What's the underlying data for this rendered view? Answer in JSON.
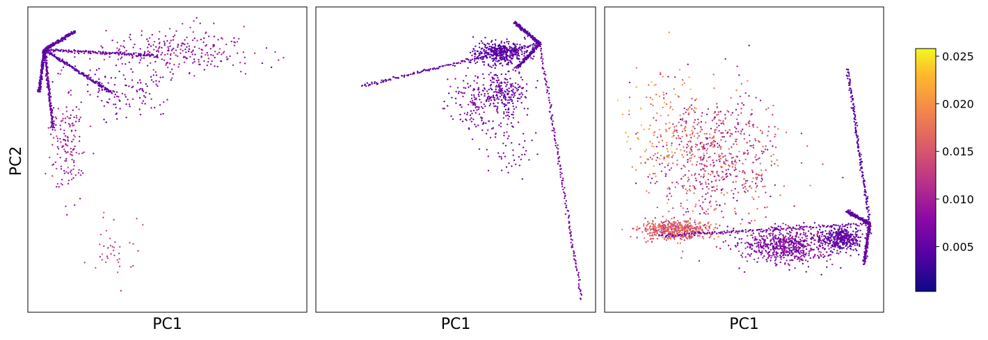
{
  "figure": {
    "ylabel": "PC2",
    "colormap": "plasma",
    "colorbar": {
      "min": 0.0003,
      "max": 0.0258,
      "ticks": [
        "0.005",
        "0.010",
        "0.015",
        "0.020",
        "0.025"
      ],
      "tick_values": [
        0.005,
        0.01,
        0.015,
        0.02,
        0.025
      ]
    }
  },
  "chart_data": [
    {
      "type": "scatter",
      "xlabel": "PC1",
      "ylabel": "PC2",
      "grid": false,
      "xlim": [
        0,
        100
      ],
      "ylim": [
        0,
        100
      ],
      "hub": [
        6,
        86
      ],
      "arms": [
        {
          "x": 17,
          "y": 92,
          "value": 0.004
        },
        {
          "x": 47,
          "y": 84,
          "value": 0.005
        },
        {
          "x": 30,
          "y": 72,
          "value": 0.004
        },
        {
          "x": 9,
          "y": 60,
          "value": 0.005
        },
        {
          "x": 4,
          "y": 72,
          "value": 0.004
        }
      ],
      "clusters": [
        {
          "cx": 55,
          "cy": 86,
          "sx": 22,
          "sy": 6,
          "n": 260,
          "vmin": 0.006,
          "vmax": 0.012
        },
        {
          "cx": 35,
          "cy": 72,
          "sx": 14,
          "sy": 7,
          "n": 120,
          "vmin": 0.005,
          "vmax": 0.009
        },
        {
          "cx": 14,
          "cy": 55,
          "sx": 5,
          "sy": 14,
          "n": 150,
          "vmin": 0.007,
          "vmax": 0.013
        },
        {
          "cx": 30,
          "cy": 20,
          "sx": 6,
          "sy": 9,
          "n": 40,
          "vmin": 0.011,
          "vmax": 0.016
        }
      ]
    },
    {
      "type": "scatter",
      "xlabel": "PC1",
      "ylabel": "PC2",
      "grid": false,
      "xlim": [
        0,
        100
      ],
      "ylim": [
        0,
        100
      ],
      "hub": [
        80,
        88
      ],
      "arms": [
        {
          "x": 16,
          "y": 74,
          "value": 0.004
        },
        {
          "x": 71,
          "y": 95,
          "value": 0.004
        },
        {
          "x": 95,
          "y": 4,
          "value": 0.006
        },
        {
          "x": 72,
          "y": 80,
          "value": 0.004
        }
      ],
      "clusters": [
        {
          "cx": 66,
          "cy": 85,
          "sx": 8,
          "sy": 3,
          "n": 420,
          "vmin": 0.003,
          "vmax": 0.006
        },
        {
          "cx": 67,
          "cy": 72,
          "sx": 7,
          "sy": 5,
          "n": 200,
          "vmin": 0.004,
          "vmax": 0.007
        },
        {
          "cx": 58,
          "cy": 68,
          "sx": 10,
          "sy": 10,
          "n": 160,
          "vmin": 0.005,
          "vmax": 0.009
        },
        {
          "cx": 70,
          "cy": 55,
          "sx": 6,
          "sy": 12,
          "n": 60,
          "vmin": 0.005,
          "vmax": 0.008
        }
      ]
    },
    {
      "type": "scatter",
      "xlabel": "PC1",
      "ylabel": "PC2",
      "grid": false,
      "xlim": [
        0,
        100
      ],
      "ylim": [
        0,
        100
      ],
      "hub": [
        95,
        29
      ],
      "arms": [
        {
          "x": 87,
          "y": 80,
          "value": 0.004
        },
        {
          "x": 19,
          "y": 25,
          "value": 0.005
        },
        {
          "x": 87,
          "y": 33,
          "value": 0.004
        },
        {
          "x": 93,
          "y": 16,
          "value": 0.005
        }
      ],
      "clusters": [
        {
          "cx": 25,
          "cy": 27,
          "sx": 10,
          "sy": 2.5,
          "n": 500,
          "vmin": 0.011,
          "vmax": 0.02
        },
        {
          "cx": 65,
          "cy": 22,
          "sx": 14,
          "sy": 5,
          "n": 650,
          "vmin": 0.004,
          "vmax": 0.011
        },
        {
          "cx": 85,
          "cy": 24,
          "sx": 6,
          "sy": 3,
          "n": 350,
          "vmin": 0.003,
          "vmax": 0.007
        },
        {
          "cx": 40,
          "cy": 50,
          "sx": 20,
          "sy": 18,
          "n": 700,
          "vmin": 0.007,
          "vmax": 0.019
        },
        {
          "cx": 22,
          "cy": 60,
          "sx": 10,
          "sy": 16,
          "n": 120,
          "vmin": 0.016,
          "vmax": 0.024
        }
      ]
    }
  ]
}
